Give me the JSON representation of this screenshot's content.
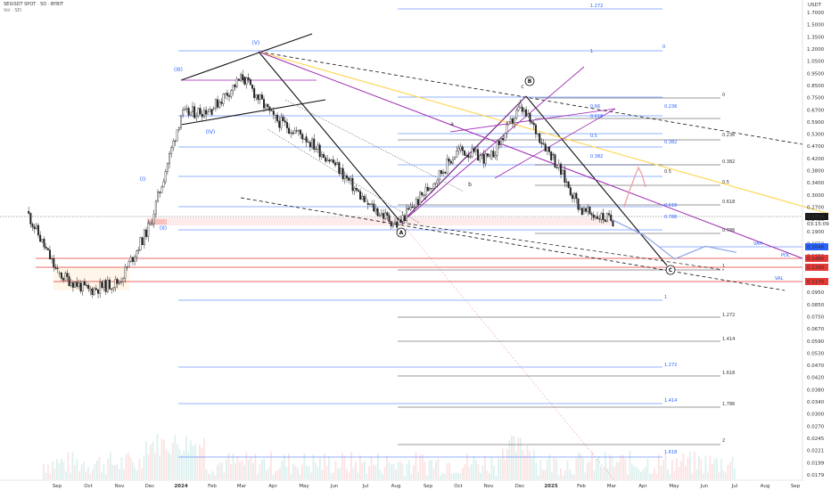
{
  "header": {
    "symbol_line": "SEIUSDT SPOT · 5D · BYBIT",
    "volume_line": "Vol · SEI"
  },
  "axis": {
    "currency": "USDT",
    "y_ticks": [
      "1.7000",
      "1.5000",
      "1.3500",
      "1.2000",
      "1.0500",
      "0.9500",
      "0.8500",
      "0.7500",
      "0.6700",
      "0.5900",
      "0.5300",
      "0.4700",
      "0.4200",
      "0.3800",
      "0.3400",
      "0.3000",
      "0.2700",
      "0.2400",
      "0.1900",
      "0.1650",
      "0.1350",
      "0.1200",
      "0.1050",
      "0.0950",
      "0.0850",
      "0.0750",
      "0.0670",
      "0.0590",
      "0.0530",
      "0.0470",
      "0.0420",
      "0.0380",
      "0.0340",
      "0.0300",
      "0.0270",
      "0.0245",
      "0.0221",
      "0.0199",
      "0.0179"
    ],
    "x_ticks": [
      {
        "label": "Sep",
        "bold": false
      },
      {
        "label": "Oct",
        "bold": false
      },
      {
        "label": "Nov",
        "bold": false
      },
      {
        "label": "Dec",
        "bold": false
      },
      {
        "label": "2024",
        "bold": true
      },
      {
        "label": "Feb",
        "bold": false
      },
      {
        "label": "Mar",
        "bold": false
      },
      {
        "label": "Apr",
        "bold": false
      },
      {
        "label": "May",
        "bold": false
      },
      {
        "label": "Jun",
        "bold": false
      },
      {
        "label": "Jul",
        "bold": false
      },
      {
        "label": "Aug",
        "bold": false
      },
      {
        "label": "Sep",
        "bold": false
      },
      {
        "label": "Oct",
        "bold": false
      },
      {
        "label": "Nov",
        "bold": false
      },
      {
        "label": "Dec",
        "bold": false
      },
      {
        "label": "2025",
        "bold": true
      },
      {
        "label": "Feb",
        "bold": false
      },
      {
        "label": "Mar",
        "bold": false
      },
      {
        "label": "Apr",
        "bold": false
      },
      {
        "label": "May",
        "bold": false
      },
      {
        "label": "Jun",
        "bold": false
      },
      {
        "label": "Jul",
        "bold": false
      },
      {
        "label": "Aug",
        "bold": false
      },
      {
        "label": "Sep",
        "bold": false
      }
    ],
    "price_tags": [
      {
        "text": "0.2219",
        "color": "#1a1a1a"
      },
      {
        "text": "0.1648",
        "color": "#2962ff"
      },
      {
        "text": "0.1480",
        "color": "#e53935"
      },
      {
        "text": "0.1340",
        "color": "#e53935"
      },
      {
        "text": "0.1170",
        "color": "#e53935"
      }
    ],
    "sub_tag": "03:15:09"
  },
  "wave_labels": [
    "(V)",
    "(III)",
    "(IV)",
    "(I)",
    "(II)",
    "a",
    "b",
    "c"
  ],
  "circle_labels": [
    "A",
    "B",
    "C"
  ],
  "fib_labels": {
    "blue_top": [
      "1.272",
      "0",
      "1"
    ],
    "right_black": [
      "0",
      "0.236",
      "0.382",
      "0.5",
      "0.618",
      "0.786",
      "1"
    ],
    "blue_mid": [
      "0.236",
      "0.382",
      "0.5",
      "0.618",
      "0.5",
      "0.382",
      "0.236",
      "0.618",
      "0.66",
      "0.786",
      "1"
    ],
    "ext_black": [
      "1.272",
      "1.414",
      "1.618",
      "1.786",
      "2"
    ],
    "ext_blue": [
      "1.272",
      "1.414",
      "1.618"
    ],
    "fan": [
      "0.66",
      "0.618",
      "0.5",
      "0.382"
    ]
  },
  "level_labels": [
    "VAH",
    "POC",
    "VAL"
  ],
  "colors": {
    "blue_fib": "#2962ff",
    "black_fib": "#333333",
    "red_level": "#e53935",
    "magenta": "#9c27b0",
    "yellow": "#ffd54f",
    "candle": "#222222",
    "projection": "#90a4e8",
    "projection_red": "#ef9a9a"
  },
  "chart_data": {
    "type": "candlestick",
    "title": "SEIUSDT SPOT · 5D · BYBIT",
    "xlabel": "",
    "ylabel": "",
    "y_scale": "log",
    "ylim": [
      0.0179,
      1.7
    ],
    "x_range": [
      "Sep 2023",
      "Sep 2025"
    ],
    "series": [
      {
        "name": "SEIUSDT",
        "points": [
          {
            "x": "Aug 2023",
            "y": 0.24
          },
          {
            "x": "Sep 2023",
            "y": 0.13
          },
          {
            "x": "Oct 2023",
            "y": 0.11
          },
          {
            "x": "Nov 2023",
            "y": 0.12
          },
          {
            "x": "Dec 2023",
            "y": 0.21
          },
          {
            "x": "Jan 2024",
            "y": 0.62
          },
          {
            "x": "Feb 2024",
            "y": 0.66
          },
          {
            "x": "Mar 2024",
            "y": 0.9
          },
          {
            "x": "Apr 2024",
            "y": 0.6
          },
          {
            "x": "May 2024",
            "y": 0.5
          },
          {
            "x": "Jun 2024",
            "y": 0.38
          },
          {
            "x": "Jul 2024",
            "y": 0.26
          },
          {
            "x": "Aug 2024",
            "y": 0.21
          },
          {
            "x": "Sep 2024",
            "y": 0.3
          },
          {
            "x": "Oct 2024",
            "y": 0.44
          },
          {
            "x": "Nov 2024",
            "y": 0.4
          },
          {
            "x": "Dec 2024",
            "y": 0.67
          },
          {
            "x": "Jan 2025",
            "y": 0.42
          },
          {
            "x": "Feb 2025",
            "y": 0.24
          },
          {
            "x": "Mar 2025",
            "y": 0.22
          }
        ]
      },
      {
        "name": "",
        "points": [
          {
            "x": "Mar 2025",
            "y": 0.22
          },
          {
            "x": "Apr 2025",
            "y": 0.19
          },
          {
            "x": "May 2025",
            "y": 0.15
          },
          {
            "x": "Jun 2025",
            "y": 0.17
          },
          {
            "x": "Jul 2025",
            "y": 0.16
          }
        ]
      }
    ],
    "horizontal_levels": [
      {
        "label": "VAH",
        "value": 0.1648
      },
      {
        "label": "POC",
        "value": 0.148
      },
      {
        "label": "VAL",
        "value": 0.134
      },
      {
        "label": "",
        "value": 0.117
      }
    ]
  }
}
